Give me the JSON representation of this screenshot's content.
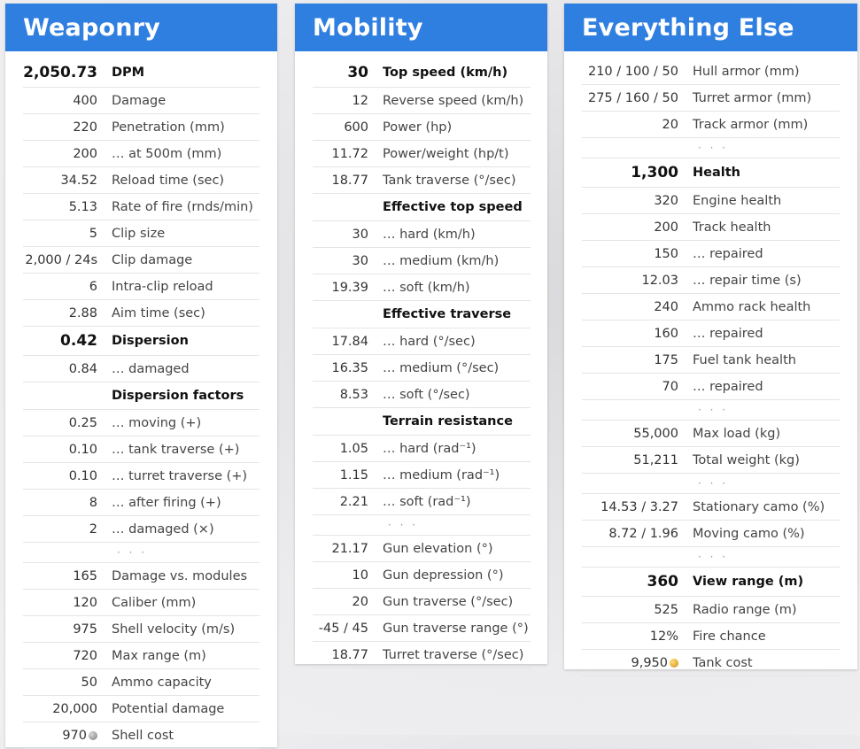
{
  "weaponry": {
    "title": "Weaponry",
    "rows": [
      {
        "type": "big",
        "value": "2,050.73",
        "label": "DPM"
      },
      {
        "type": "row",
        "value": "400",
        "label": "Damage"
      },
      {
        "type": "row",
        "value": "220",
        "label": "Penetration (mm)"
      },
      {
        "type": "row",
        "value": "200",
        "label": "… at 500m (mm)"
      },
      {
        "type": "row",
        "value": "34.52",
        "label": "Reload time (sec)"
      },
      {
        "type": "row",
        "value": "5.13",
        "label": "Rate of fire (rnds/min)"
      },
      {
        "type": "row",
        "value": "5",
        "label": "Clip size"
      },
      {
        "type": "row",
        "value": "2,000 / 24s",
        "label": "Clip damage"
      },
      {
        "type": "row",
        "value": "6",
        "label": "Intra-clip reload"
      },
      {
        "type": "row",
        "value": "2.88",
        "label": "Aim time (sec)"
      },
      {
        "type": "big",
        "value": "0.42",
        "label": "Dispersion"
      },
      {
        "type": "row",
        "value": "0.84",
        "label": "… damaged"
      },
      {
        "type": "heading",
        "value": "",
        "label": "Dispersion factors"
      },
      {
        "type": "row",
        "value": "0.25",
        "label": "… moving (+)"
      },
      {
        "type": "row",
        "value": "0.10",
        "label": "… tank traverse (+)"
      },
      {
        "type": "row",
        "value": "0.10",
        "label": "… turret traverse (+)"
      },
      {
        "type": "row",
        "value": "8",
        "label": "… after firing (+)"
      },
      {
        "type": "row",
        "value": "2",
        "label": "… damaged (×)"
      },
      {
        "type": "ellipsis",
        "value": "",
        "label": "· · ·"
      },
      {
        "type": "row",
        "value": "165",
        "label": "Damage vs. modules"
      },
      {
        "type": "row",
        "value": "120",
        "label": "Caliber (mm)"
      },
      {
        "type": "row",
        "value": "975",
        "label": "Shell velocity (m/s)"
      },
      {
        "type": "row",
        "value": "720",
        "label": "Max range (m)"
      },
      {
        "type": "row",
        "value": "50",
        "label": "Ammo capacity"
      },
      {
        "type": "row",
        "value": "20,000",
        "label": "Potential damage"
      },
      {
        "type": "row",
        "value": "970",
        "label": "Shell cost",
        "icon": "silver-coin-icon"
      }
    ]
  },
  "mobility": {
    "title": "Mobility",
    "rows": [
      {
        "type": "big",
        "value": "30",
        "label": "Top speed (km/h)"
      },
      {
        "type": "row",
        "value": "12",
        "label": "Reverse speed (km/h)"
      },
      {
        "type": "row",
        "value": "600",
        "label": "Power (hp)"
      },
      {
        "type": "row",
        "value": "11.72",
        "label": "Power/weight (hp/t)"
      },
      {
        "type": "row",
        "value": "18.77",
        "label": "Tank traverse (°/sec)"
      },
      {
        "type": "heading",
        "value": "",
        "label": "Effective top speed"
      },
      {
        "type": "row",
        "value": "30",
        "label": "… hard (km/h)"
      },
      {
        "type": "row",
        "value": "30",
        "label": "… medium (km/h)"
      },
      {
        "type": "row",
        "value": "19.39",
        "label": "… soft (km/h)"
      },
      {
        "type": "heading",
        "value": "",
        "label": "Effective traverse"
      },
      {
        "type": "row",
        "value": "17.84",
        "label": "… hard (°/sec)"
      },
      {
        "type": "row",
        "value": "16.35",
        "label": "… medium (°/sec)"
      },
      {
        "type": "row",
        "value": "8.53",
        "label": "… soft (°/sec)"
      },
      {
        "type": "heading",
        "value": "",
        "label": "Terrain resistance"
      },
      {
        "type": "row",
        "value": "1.05",
        "label": "… hard (rad⁻¹)"
      },
      {
        "type": "row",
        "value": "1.15",
        "label": "… medium (rad⁻¹)"
      },
      {
        "type": "row",
        "value": "2.21",
        "label": "… soft (rad⁻¹)"
      },
      {
        "type": "ellipsis",
        "value": "",
        "label": "· · ·"
      },
      {
        "type": "row",
        "value": "21.17",
        "label": "Gun elevation (°)"
      },
      {
        "type": "row",
        "value": "10",
        "label": "Gun depression (°)"
      },
      {
        "type": "row",
        "value": "20",
        "label": "Gun traverse (°/sec)"
      },
      {
        "type": "row",
        "value": "-45 / 45",
        "label": "Gun traverse range (°)"
      },
      {
        "type": "row",
        "value": "18.77",
        "label": "Turret traverse (°/sec)"
      }
    ]
  },
  "everything_else": {
    "title": "Everything Else",
    "rows": [
      {
        "type": "row",
        "value": "210 / 100 / 50",
        "label": "Hull armor (mm)"
      },
      {
        "type": "row",
        "value": "275 / 160 / 50",
        "label": "Turret armor (mm)"
      },
      {
        "type": "row",
        "value": "20",
        "label": "Track armor (mm)"
      },
      {
        "type": "ellipsis",
        "value": "",
        "label": "· · ·"
      },
      {
        "type": "big",
        "value": "1,300",
        "label": "Health"
      },
      {
        "type": "row",
        "value": "320",
        "label": "Engine health"
      },
      {
        "type": "row",
        "value": "200",
        "label": "Track health"
      },
      {
        "type": "row",
        "value": "150",
        "label": "… repaired"
      },
      {
        "type": "row",
        "value": "12.03",
        "label": "… repair time (s)"
      },
      {
        "type": "row",
        "value": "240",
        "label": "Ammo rack health"
      },
      {
        "type": "row",
        "value": "160",
        "label": "… repaired"
      },
      {
        "type": "row",
        "value": "175",
        "label": "Fuel tank health"
      },
      {
        "type": "row",
        "value": "70",
        "label": "… repaired"
      },
      {
        "type": "ellipsis",
        "value": "",
        "label": "· · ·"
      },
      {
        "type": "row",
        "value": "55,000",
        "label": "Max load (kg)"
      },
      {
        "type": "row",
        "value": "51,211",
        "label": "Total weight (kg)"
      },
      {
        "type": "ellipsis",
        "value": "",
        "label": "· · ·"
      },
      {
        "type": "row",
        "value": "14.53 / 3.27",
        "label": "Stationary camo (%)"
      },
      {
        "type": "row",
        "value": "8.72 / 1.96",
        "label": "Moving camo (%)"
      },
      {
        "type": "ellipsis",
        "value": "",
        "label": "· · ·"
      },
      {
        "type": "big",
        "value": "360",
        "label": "View range (m)"
      },
      {
        "type": "row",
        "value": "525",
        "label": "Radio range (m)"
      },
      {
        "type": "row",
        "value": "12%",
        "label": "Fire chance"
      },
      {
        "type": "row",
        "value": "9,950",
        "label": "Tank cost",
        "icon": "gold-coin-icon"
      }
    ]
  }
}
